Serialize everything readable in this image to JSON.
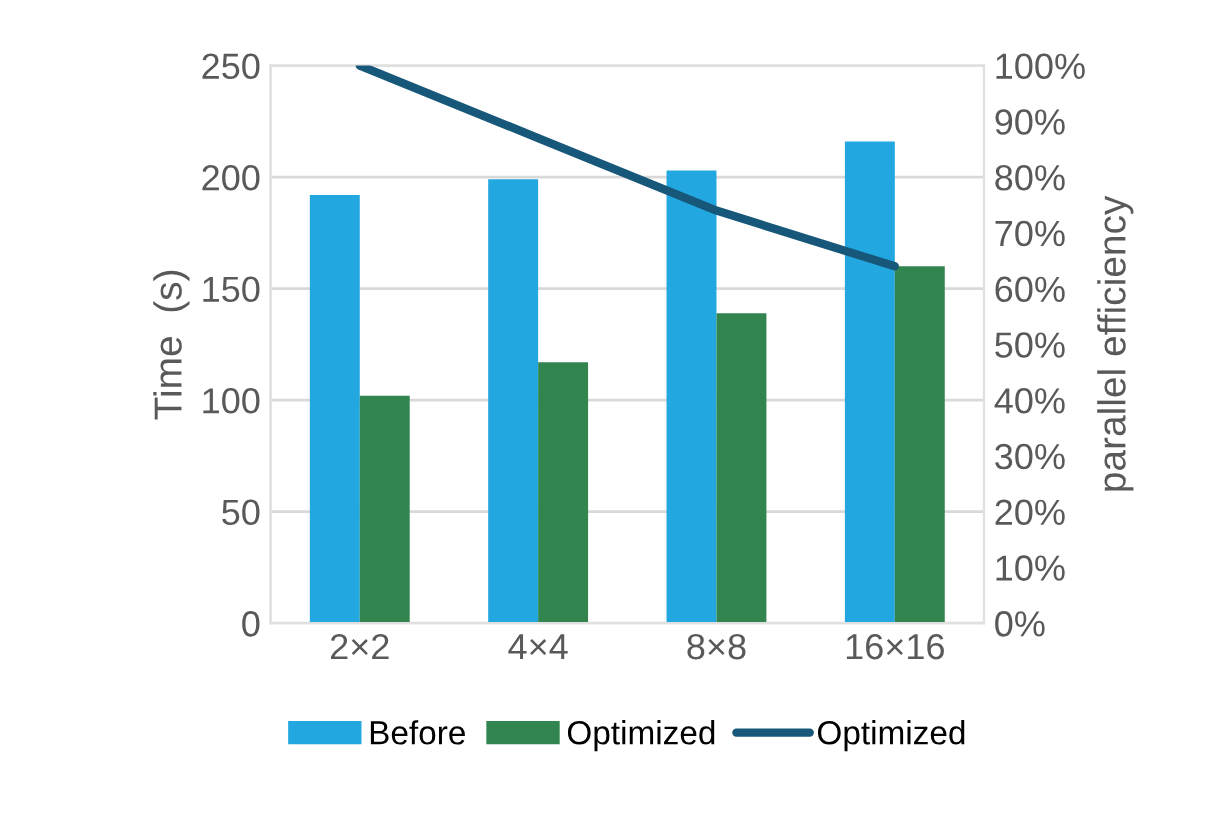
{
  "chart_data": {
    "type": "bar",
    "categories": [
      "2×2",
      "4×4",
      "8×8",
      "16×16"
    ],
    "ylabel": "Time  (s)",
    "y2label": "parallel efficiency",
    "ylim": [
      0,
      250
    ],
    "yticks": [
      0,
      50,
      100,
      150,
      200,
      250
    ],
    "y2lim": [
      0,
      100
    ],
    "y2ticks": [
      {
        "value": 0,
        "label": "0%"
      },
      {
        "value": 10,
        "label": "10%"
      },
      {
        "value": 20,
        "label": "20%"
      },
      {
        "value": 30,
        "label": "30%"
      },
      {
        "value": 40,
        "label": "40%"
      },
      {
        "value": 50,
        "label": "50%"
      },
      {
        "value": 60,
        "label": "60%"
      },
      {
        "value": 70,
        "label": "70%"
      },
      {
        "value": 80,
        "label": "80%"
      },
      {
        "value": 90,
        "label": "90%"
      },
      {
        "value": 100,
        "label": "100%"
      }
    ],
    "grid": "y",
    "legend": "bottom",
    "series": [
      {
        "name": "Before",
        "color": "#22a7e0",
        "values": [
          192,
          199,
          203,
          216
        ]
      },
      {
        "name": "Optimized",
        "color": "#338550",
        "values": [
          102,
          117,
          139,
          160
        ]
      },
      {
        "name": "Optimized",
        "type": "line",
        "axis": "y2",
        "color": "#17587a",
        "values": [
          100,
          87,
          74,
          64
        ]
      }
    ]
  }
}
